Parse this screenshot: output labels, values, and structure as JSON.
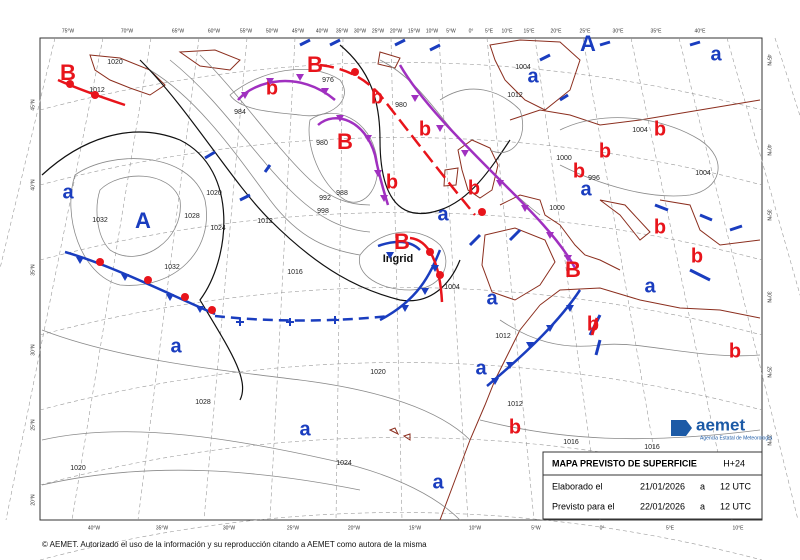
{
  "lows": [
    "B",
    "B",
    "B",
    "B",
    "B"
  ],
  "secondary_lows": [
    "b",
    "b",
    "b",
    "b",
    "b",
    "b",
    "b",
    "b",
    "b",
    "b",
    "b",
    "b",
    "b"
  ],
  "highs": [
    "A",
    "A"
  ],
  "secondary_highs": [
    "a",
    "a",
    "a",
    "a",
    "a",
    "a",
    "a",
    "a",
    "a",
    "a",
    "a"
  ],
  "storm_name": "Ingrid",
  "isobar_labels": [
    "1020",
    "1012",
    "1032",
    "1028",
    "1020",
    "1024",
    "1012",
    "992",
    "998",
    "988",
    "1016",
    "1032",
    "1020",
    "1028",
    "1024",
    "1020",
    "1004",
    "1016",
    "1016",
    "1012",
    "1004",
    "1000",
    "1000",
    "1012",
    "1012",
    "1004",
    "1004",
    "980",
    "984",
    "976",
    "980",
    "996"
  ],
  "longitudes_top": [
    "75°W",
    "70°W",
    "65°W",
    "60°W",
    "55°W",
    "50°W",
    "45°W",
    "40°W",
    "35°W",
    "30°W",
    "25°W",
    "20°W",
    "15°W",
    "10°W",
    "5°W",
    "0°",
    "5°E",
    "10°E",
    "15°E",
    "20°E",
    "25°E",
    "30°E",
    "35°E",
    "40°E"
  ],
  "longitudes_bottom": [
    "40°W",
    "35°W",
    "30°W",
    "25°W",
    "20°W",
    "15°W",
    "10°W",
    "5°W",
    "0°",
    "5°E",
    "10°E"
  ],
  "latitudes_left": [
    "45°N",
    "40°N",
    "35°N",
    "30°N",
    "25°N",
    "20°N"
  ],
  "latitudes_right": [
    "45°N",
    "40°N",
    "35°N",
    "30°N",
    "25°N",
    "20°N"
  ],
  "info_box": {
    "title": "MAPA PREVISTO DE SUPERFICIE",
    "lead_time": "H+24",
    "rows": [
      [
        "Elaborado el",
        "21/01/2026",
        "a",
        "12 UTC"
      ],
      [
        "Previsto para el",
        "22/01/2026",
        "a",
        "12 UTC"
      ]
    ]
  },
  "logo": {
    "name": "aemet",
    "agency": "Agencia Estatal de Meteorología"
  },
  "footer": "© AEMET. Autorizado el uso de la información y su reproducción citando a AEMET como autora de la misma"
}
